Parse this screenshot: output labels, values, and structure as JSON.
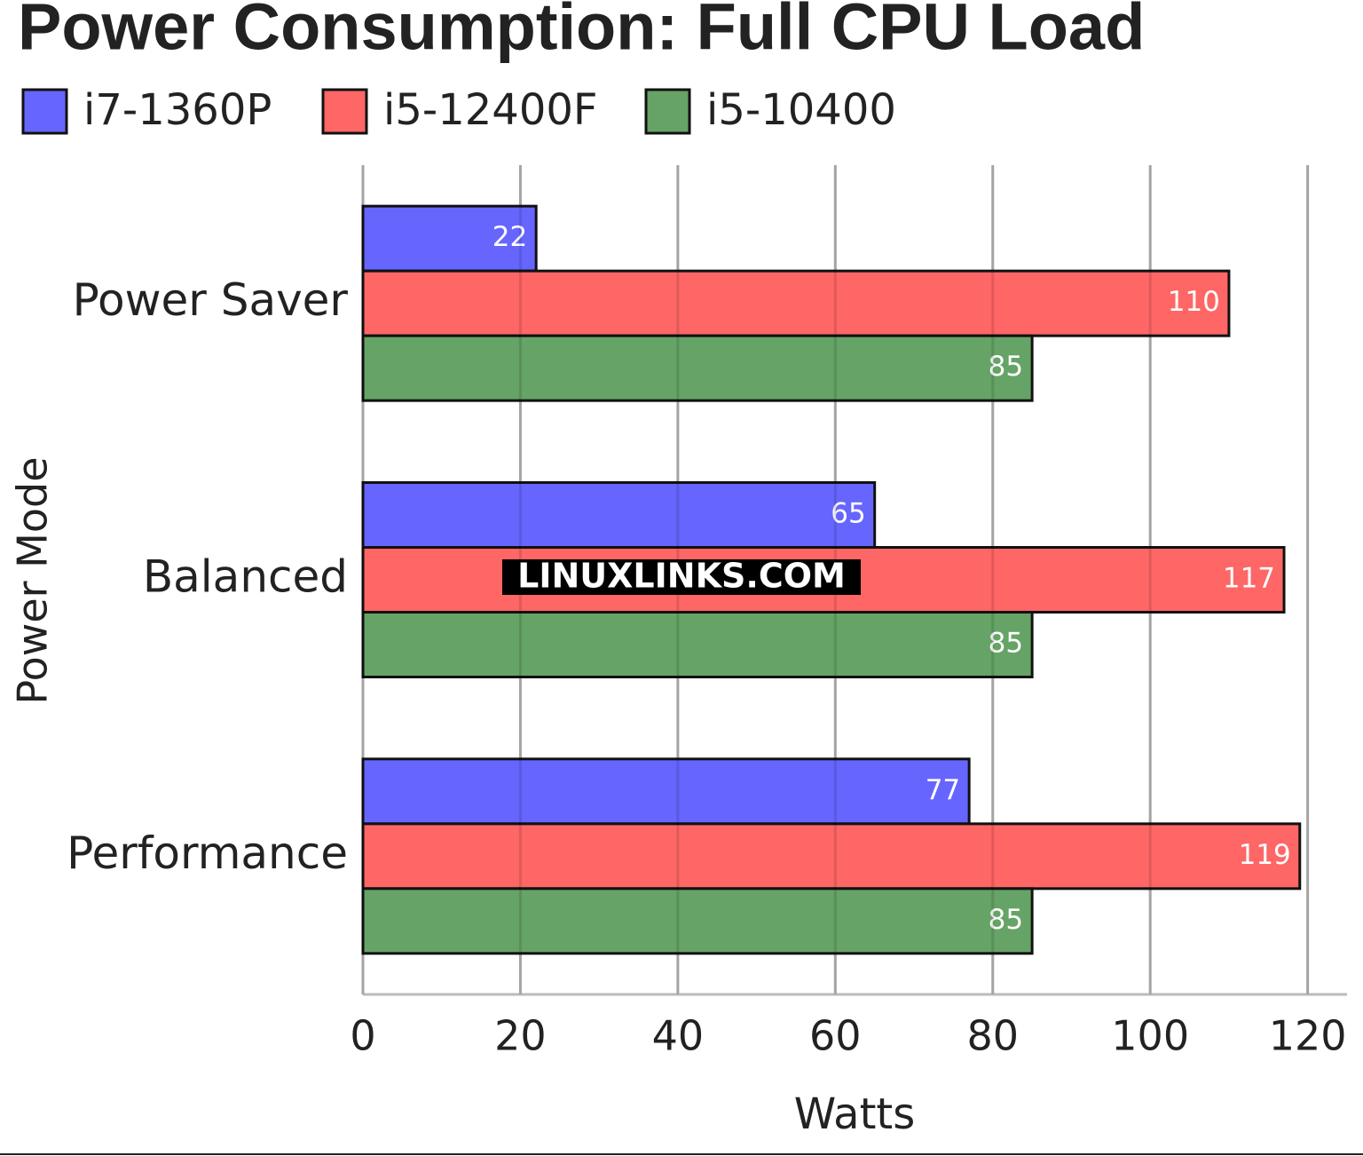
{
  "chart_data": {
    "type": "hbar",
    "title": "Power Consumption: Full CPU Load",
    "categories": [
      "Power Saver",
      "Balanced",
      "Performance"
    ],
    "series": [
      {
        "name": "i7-1360P",
        "color": "#6666ff",
        "values": [
          22,
          65,
          77
        ]
      },
      {
        "name": "i5-12400F",
        "color": "#ff6666",
        "values": [
          110,
          117,
          119
        ]
      },
      {
        "name": "i5-10400",
        "color": "#66a366",
        "values": [
          85,
          85,
          85
        ]
      }
    ],
    "xlim": [
      0,
      125
    ],
    "xticks": [
      0,
      20,
      40,
      60,
      80,
      100,
      120
    ],
    "x_label": "Watts",
    "y_label": "Power Mode",
    "grid": true,
    "watermark": "LINUXLINKS.COM"
  }
}
